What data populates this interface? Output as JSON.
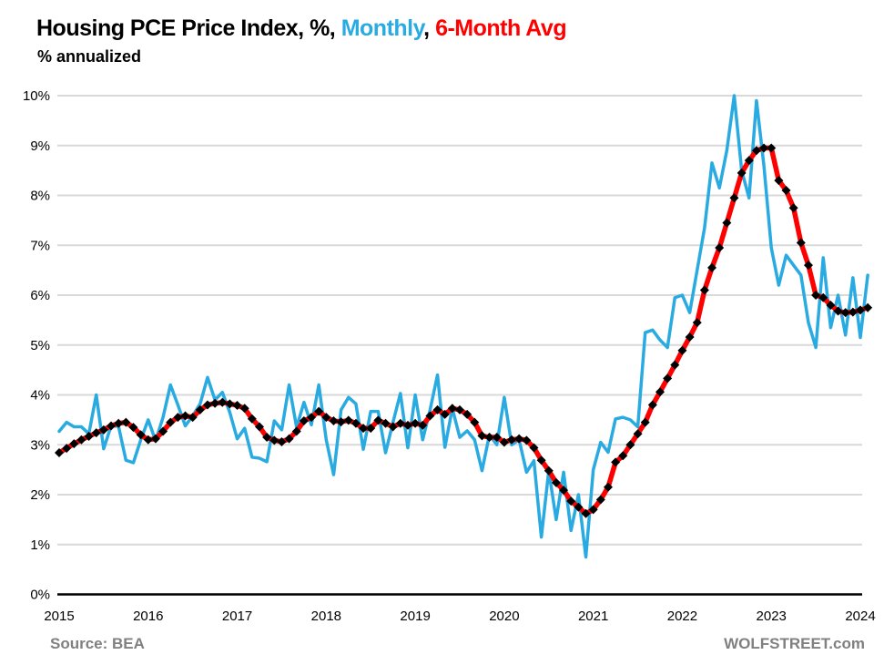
{
  "header": {
    "title_black": "Housing PCE Price Index, %, ",
    "title_blue": "Monthly",
    "title_sep": ", ",
    "title_red": "6-Month Avg",
    "subtitle": "% annualized"
  },
  "footer": {
    "source": "Source: BEA",
    "watermark": "WOLFSTREET.com"
  },
  "colors": {
    "monthly_line": "#29abe2",
    "avg_line": "#ff0000",
    "avg_marker": "#000000",
    "gridline": "#d9d9d9",
    "axis": "#000000",
    "footer_text": "#808080"
  },
  "chart_data": {
    "type": "line",
    "title": "Housing PCE Price Index, %, Monthly, 6-Month Avg",
    "subtitle": "% annualized",
    "ylabel": "% annualized",
    "ylim": [
      0,
      10
    ],
    "grid": true,
    "legend_position": "none (color-coded in title)",
    "y_ticks": [
      "0%",
      "1%",
      "2%",
      "3%",
      "4%",
      "5%",
      "6%",
      "7%",
      "8%",
      "9%",
      "10%"
    ],
    "x_ticks": [
      "2015",
      "2016",
      "2017",
      "2018",
      "2019",
      "2020",
      "2021",
      "2022",
      "2023",
      "2024"
    ],
    "x_months": [
      "2015-01",
      "2015-02",
      "2015-03",
      "2015-04",
      "2015-05",
      "2015-06",
      "2015-07",
      "2015-08",
      "2015-09",
      "2015-10",
      "2015-11",
      "2015-12",
      "2016-01",
      "2016-02",
      "2016-03",
      "2016-04",
      "2016-05",
      "2016-06",
      "2016-07",
      "2016-08",
      "2016-09",
      "2016-10",
      "2016-11",
      "2016-12",
      "2017-01",
      "2017-02",
      "2017-03",
      "2017-04",
      "2017-05",
      "2017-06",
      "2017-07",
      "2017-08",
      "2017-09",
      "2017-10",
      "2017-11",
      "2017-12",
      "2018-01",
      "2018-02",
      "2018-03",
      "2018-04",
      "2018-05",
      "2018-06",
      "2018-07",
      "2018-08",
      "2018-09",
      "2018-10",
      "2018-11",
      "2018-12",
      "2019-01",
      "2019-02",
      "2019-03",
      "2019-04",
      "2019-05",
      "2019-06",
      "2019-07",
      "2019-08",
      "2019-09",
      "2019-10",
      "2019-11",
      "2019-12",
      "2020-01",
      "2020-02",
      "2020-03",
      "2020-04",
      "2020-05",
      "2020-06",
      "2020-07",
      "2020-08",
      "2020-09",
      "2020-10",
      "2020-11",
      "2020-12",
      "2021-01",
      "2021-02",
      "2021-03",
      "2021-04",
      "2021-05",
      "2021-06",
      "2021-07",
      "2021-08",
      "2021-09",
      "2021-10",
      "2021-11",
      "2021-12",
      "2022-01",
      "2022-02",
      "2022-03",
      "2022-04",
      "2022-05",
      "2022-06",
      "2022-07",
      "2022-08",
      "2022-09",
      "2022-10",
      "2022-11",
      "2022-12",
      "2023-01",
      "2023-02",
      "2023-03",
      "2023-04",
      "2023-05",
      "2023-06",
      "2023-07",
      "2023-08",
      "2023-09",
      "2023-10",
      "2023-11",
      "2023-12",
      "2024-01",
      "2024-02"
    ],
    "series": [
      {
        "name": "Monthly",
        "color": "#29abe2",
        "values": [
          3.27,
          3.45,
          3.36,
          3.36,
          3.22,
          4.0,
          2.92,
          3.38,
          3.37,
          2.69,
          2.64,
          3.1,
          3.5,
          3.08,
          3.55,
          4.2,
          3.8,
          3.38,
          3.58,
          3.82,
          4.35,
          3.9,
          4.05,
          3.65,
          3.12,
          3.33,
          2.75,
          2.73,
          2.66,
          3.48,
          3.3,
          4.2,
          3.35,
          3.85,
          3.4,
          4.2,
          3.1,
          2.4,
          3.7,
          3.95,
          3.82,
          2.91,
          3.67,
          3.67,
          2.84,
          3.45,
          4.03,
          2.94,
          4.0,
          3.1,
          3.7,
          4.4,
          2.95,
          3.73,
          3.15,
          3.28,
          3.1,
          2.48,
          3.2,
          3.0,
          3.95,
          3.0,
          3.1,
          2.45,
          2.68,
          1.15,
          2.48,
          1.5,
          2.45,
          1.28,
          2.0,
          0.75,
          2.5,
          3.05,
          2.85,
          3.52,
          3.55,
          3.5,
          3.36,
          5.25,
          5.3,
          5.1,
          4.95,
          5.95,
          6.0,
          5.65,
          6.5,
          7.35,
          8.65,
          8.15,
          8.9,
          10.0,
          8.5,
          7.95,
          9.9,
          8.6,
          6.95,
          6.2,
          6.8,
          6.6,
          6.4,
          5.45,
          4.95,
          6.75,
          5.35,
          6.0,
          5.2,
          6.35,
          5.15,
          6.4
        ]
      },
      {
        "name": "6-Month Avg",
        "color": "#ff0000",
        "marker": "black-diamond",
        "values": [
          2.84,
          2.93,
          3.02,
          3.1,
          3.17,
          3.24,
          3.3,
          3.38,
          3.43,
          3.45,
          3.35,
          3.2,
          3.1,
          3.12,
          3.27,
          3.45,
          3.55,
          3.58,
          3.55,
          3.7,
          3.8,
          3.83,
          3.85,
          3.82,
          3.79,
          3.73,
          3.52,
          3.36,
          3.15,
          3.09,
          3.06,
          3.12,
          3.27,
          3.48,
          3.55,
          3.67,
          3.55,
          3.48,
          3.46,
          3.49,
          3.43,
          3.33,
          3.33,
          3.49,
          3.43,
          3.36,
          3.43,
          3.39,
          3.43,
          3.39,
          3.58,
          3.7,
          3.61,
          3.73,
          3.7,
          3.61,
          3.45,
          3.18,
          3.15,
          3.15,
          3.05,
          3.1,
          3.12,
          3.09,
          2.94,
          2.69,
          2.48,
          2.24,
          2.09,
          1.87,
          1.75,
          1.62,
          1.7,
          1.9,
          2.15,
          2.65,
          2.78,
          3.0,
          3.22,
          3.45,
          3.8,
          4.06,
          4.33,
          4.6,
          4.89,
          5.16,
          5.45,
          6.1,
          6.55,
          6.95,
          7.45,
          7.95,
          8.45,
          8.7,
          8.9,
          8.95,
          8.95,
          8.3,
          8.1,
          7.75,
          7.05,
          6.6,
          6.0,
          5.95,
          5.8,
          5.68,
          5.65,
          5.66,
          5.7,
          5.75
        ]
      }
    ]
  }
}
